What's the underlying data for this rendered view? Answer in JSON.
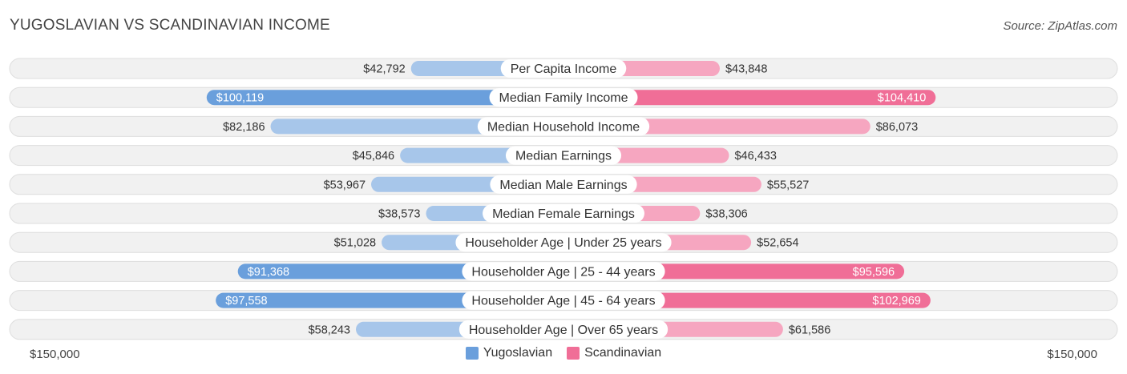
{
  "title": "YUGOSLAVIAN VS SCANDINAVIAN INCOME",
  "source": "Source: ZipAtlas.com",
  "colors": {
    "left_strong": "#6a9fdc",
    "left_light": "#a7c6ea",
    "right_strong": "#f06e97",
    "right_light": "#f6a6c0",
    "row_bg": "#f1f1f1",
    "row_border": "#dedede"
  },
  "chart_data": {
    "type": "bar",
    "orientation": "horizontal-diverging",
    "title": "YUGOSLAVIAN VS SCANDINAVIAN INCOME",
    "categories": [
      "Per Capita Income",
      "Median Family Income",
      "Median Household Income",
      "Median Earnings",
      "Median Male Earnings",
      "Median Female Earnings",
      "Householder Age | Under 25 years",
      "Householder Age | 25 - 44 years",
      "Householder Age | 45 - 64 years",
      "Householder Age | Over 65 years"
    ],
    "series": [
      {
        "name": "Yugoslavian",
        "values": [
          42792,
          100119,
          82186,
          45846,
          53967,
          38573,
          51028,
          91368,
          97558,
          58243
        ],
        "labels": [
          "$42,792",
          "$100,119",
          "$82,186",
          "$45,846",
          "$53,967",
          "$38,573",
          "$51,028",
          "$91,368",
          "$97,558",
          "$58,243"
        ]
      },
      {
        "name": "Scandinavian",
        "values": [
          43848,
          104410,
          86073,
          46433,
          55527,
          38306,
          52654,
          95596,
          102969,
          61586
        ],
        "labels": [
          "$43,848",
          "$104,410",
          "$86,073",
          "$46,433",
          "$55,527",
          "$38,306",
          "$52,654",
          "$95,596",
          "$102,969",
          "$61,586"
        ]
      }
    ],
    "xlim": [
      0,
      150000
    ],
    "axis_min_label": "$150,000",
    "axis_max_label": "$150,000",
    "legend": [
      "Yugoslavian",
      "Scandinavian"
    ],
    "legend_position": "bottom-center"
  }
}
